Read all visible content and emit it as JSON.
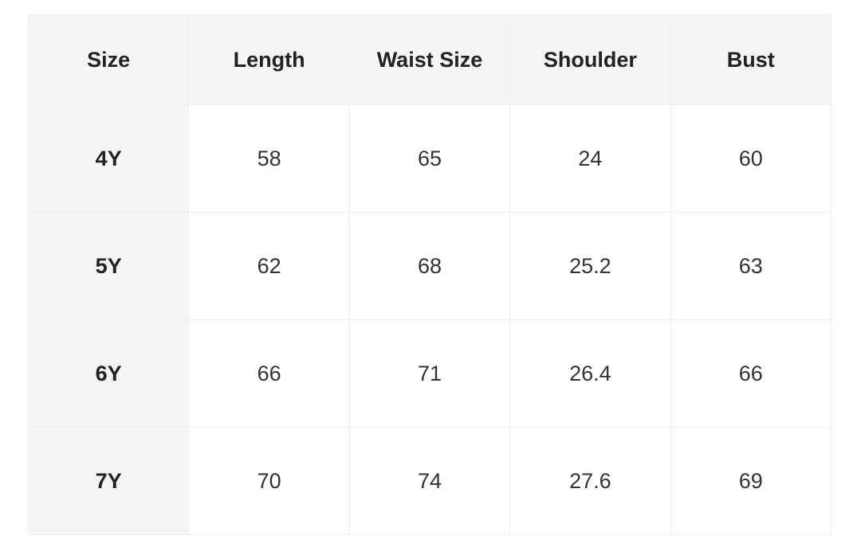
{
  "table": {
    "headers": [
      "Size",
      "Length",
      "Waist Size",
      "Shoulder",
      "Bust"
    ],
    "rows": [
      [
        "4Y",
        "58",
        "65",
        "24",
        "60"
      ],
      [
        "5Y",
        "62",
        "68",
        "25.2",
        "63"
      ],
      [
        "6Y",
        "66",
        "71",
        "26.4",
        "66"
      ],
      [
        "7Y",
        "70",
        "74",
        "27.6",
        "69"
      ]
    ]
  },
  "colors": {
    "header_bg": "#f5f5f5",
    "border": "#efefef",
    "text": "#222222"
  }
}
